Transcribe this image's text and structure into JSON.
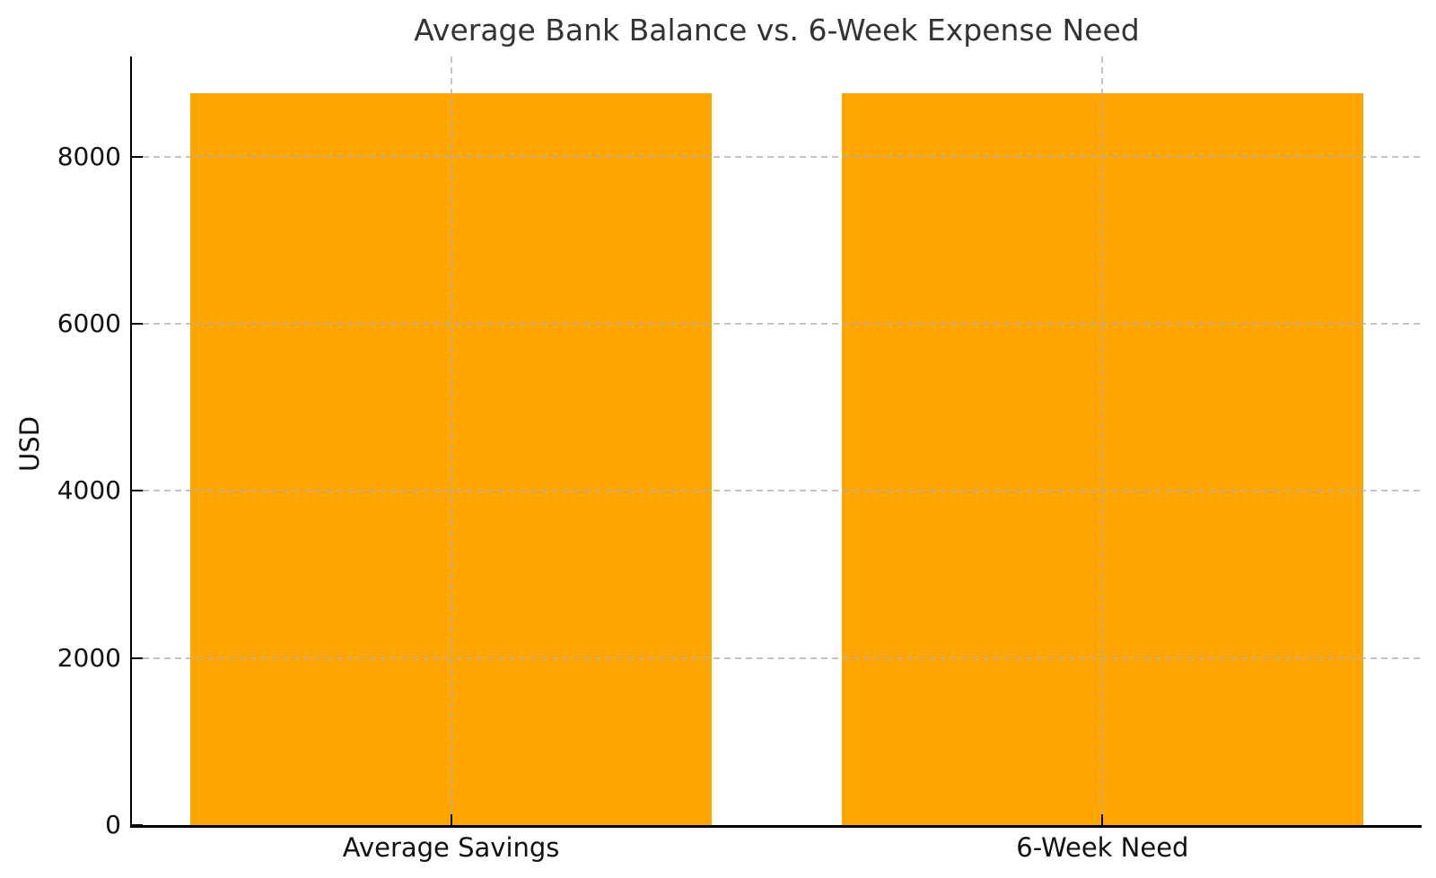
{
  "chart_data": {
    "type": "bar",
    "title": "Average Bank Balance vs. 6-Week Expense Need",
    "xlabel": "",
    "ylabel": "USD",
    "categories": [
      "Average Savings",
      "6-Week Need"
    ],
    "values": [
      8760,
      8760
    ],
    "yticks": [
      0,
      2000,
      4000,
      6000,
      8000
    ],
    "ytick_labels": [
      "0",
      "2000",
      "4000",
      "6000",
      "8000"
    ],
    "ylim": [
      0,
      9200
    ],
    "xlim": [
      -0.49,
      1.49
    ],
    "bar_width_units": 0.8,
    "grid": "on",
    "grid_style": "dashed",
    "legend": "none",
    "colors": {
      "bar": "#FFA500",
      "grid": "#b0b0b0",
      "axis": "#000000",
      "title_text": "#333333",
      "tick_text": "#111111",
      "background": "#ffffff"
    }
  }
}
